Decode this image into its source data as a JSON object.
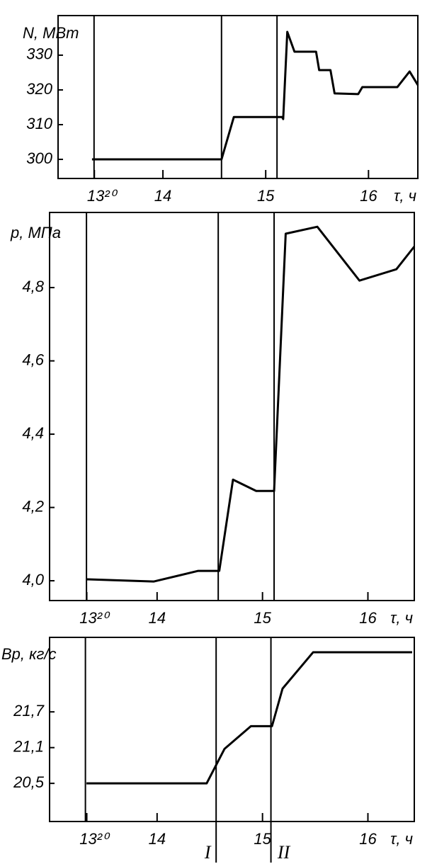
{
  "chart_data": [
    {
      "type": "line",
      "ylabel": "N, МВт",
      "xlabel": "τ, ч",
      "x": [
        13.31,
        14.57,
        14.69,
        15.16,
        15.17,
        15.21,
        15.28,
        15.49,
        15.52,
        15.63,
        15.67,
        15.9,
        15.94,
        16.28,
        16.4,
        16.48
      ],
      "values": [
        300,
        300,
        312.2,
        312.2,
        311.6,
        336.7,
        331,
        331,
        325.7,
        325.7,
        319,
        318.8,
        320.8,
        320.8,
        325.3,
        321.4
      ],
      "color": "#000000",
      "xlim": [
        12.98,
        16.48
      ],
      "ylim": [
        294.5,
        341.4
      ],
      "xticks": [
        {
          "value": 13.333,
          "label": "13²⁰"
        },
        14,
        15,
        16
      ],
      "yticks": [
        300,
        310,
        320,
        330
      ],
      "vlines": [
        {
          "x": 13.33
        },
        {
          "x": 14.57
        },
        {
          "x": 15.11
        }
      ]
    },
    {
      "type": "line",
      "ylabel": "p, МПа",
      "xlabel": "τ, ч",
      "x": [
        13.33,
        13.97,
        14.39,
        14.59,
        14.72,
        14.94,
        15.11,
        15.22,
        15.52,
        15.92,
        16.27,
        16.44
      ],
      "values": [
        4.004,
        3.998,
        4.027,
        4.027,
        4.276,
        4.245,
        4.245,
        4.947,
        4.966,
        4.819,
        4.85,
        4.912
      ],
      "color": "#000000",
      "xlim": [
        12.98,
        16.44
      ],
      "ylim": [
        3.946,
        5.005
      ],
      "xticks": [
        {
          "value": 13.333,
          "label": "13²⁰"
        },
        14,
        15,
        16
      ],
      "yticks": [
        {
          "value": 4.0,
          "label": "4,0"
        },
        {
          "value": 4.2,
          "label": "4,2"
        },
        {
          "value": 4.4,
          "label": "4,4"
        },
        {
          "value": 4.6,
          "label": "4,6"
        },
        {
          "value": 4.8,
          "label": "4,8"
        }
      ],
      "vlines": [
        {
          "x": 13.33
        },
        {
          "x": 14.58
        },
        {
          "x": 15.11
        }
      ]
    },
    {
      "type": "line",
      "ylabel": "Bp, кг/с",
      "xlabel": "τ, ч",
      "x": [
        13.33,
        14.47,
        14.64,
        14.89,
        15.09,
        15.19,
        15.48,
        16.42
      ],
      "values": [
        20.5,
        20.5,
        21.08,
        21.46,
        21.46,
        22.09,
        22.7,
        22.7
      ],
      "color": "#000000",
      "xlim": [
        12.98,
        16.44
      ],
      "ylim": [
        19.86,
        22.95
      ],
      "xticks": [
        {
          "value": 13.333,
          "label": "13²⁰"
        },
        14,
        15,
        16
      ],
      "yticks": [
        {
          "value": 20.5,
          "label": "20,5"
        },
        {
          "value": 21.1,
          "label": "21,1"
        },
        {
          "value": 21.7,
          "label": "21,7"
        }
      ],
      "vlines": [
        {
          "x": 13.32
        },
        {
          "x": 14.56,
          "label": "I"
        },
        {
          "x": 15.08,
          "label": "II"
        }
      ]
    }
  ]
}
